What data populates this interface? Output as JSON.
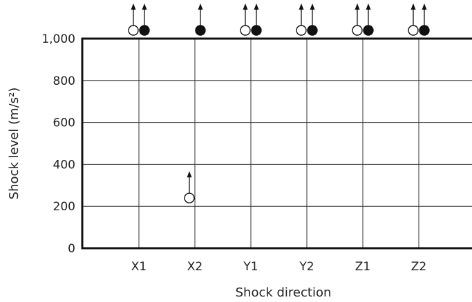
{
  "chart_data": {
    "type": "scatter",
    "xlabel": "Shock direction",
    "ylabel": "Shock level (m/s²)",
    "categories": [
      "X1",
      "X2",
      "Y1",
      "Y2",
      "Z1",
      "Z2"
    ],
    "ylim": [
      0,
      1000
    ],
    "yticks": [
      {
        "value": 0,
        "label": "0"
      },
      {
        "value": 200,
        "label": "200"
      },
      {
        "value": 400,
        "label": "400"
      },
      {
        "value": 600,
        "label": "600"
      },
      {
        "value": 800,
        "label": "800"
      },
      {
        "value": 1000,
        "label": "1,000"
      }
    ],
    "grid": true,
    "series": [
      {
        "marker": "open-circle",
        "values": [
          1000,
          200,
          1000,
          1000,
          1000,
          1000
        ],
        "arrow_up": [
          true,
          true,
          true,
          true,
          true,
          true
        ]
      },
      {
        "marker": "filled-circle",
        "values": [
          1000,
          1000,
          1000,
          1000,
          1000,
          1000
        ],
        "arrow_up": [
          true,
          true,
          true,
          true,
          true,
          true
        ]
      }
    ]
  }
}
